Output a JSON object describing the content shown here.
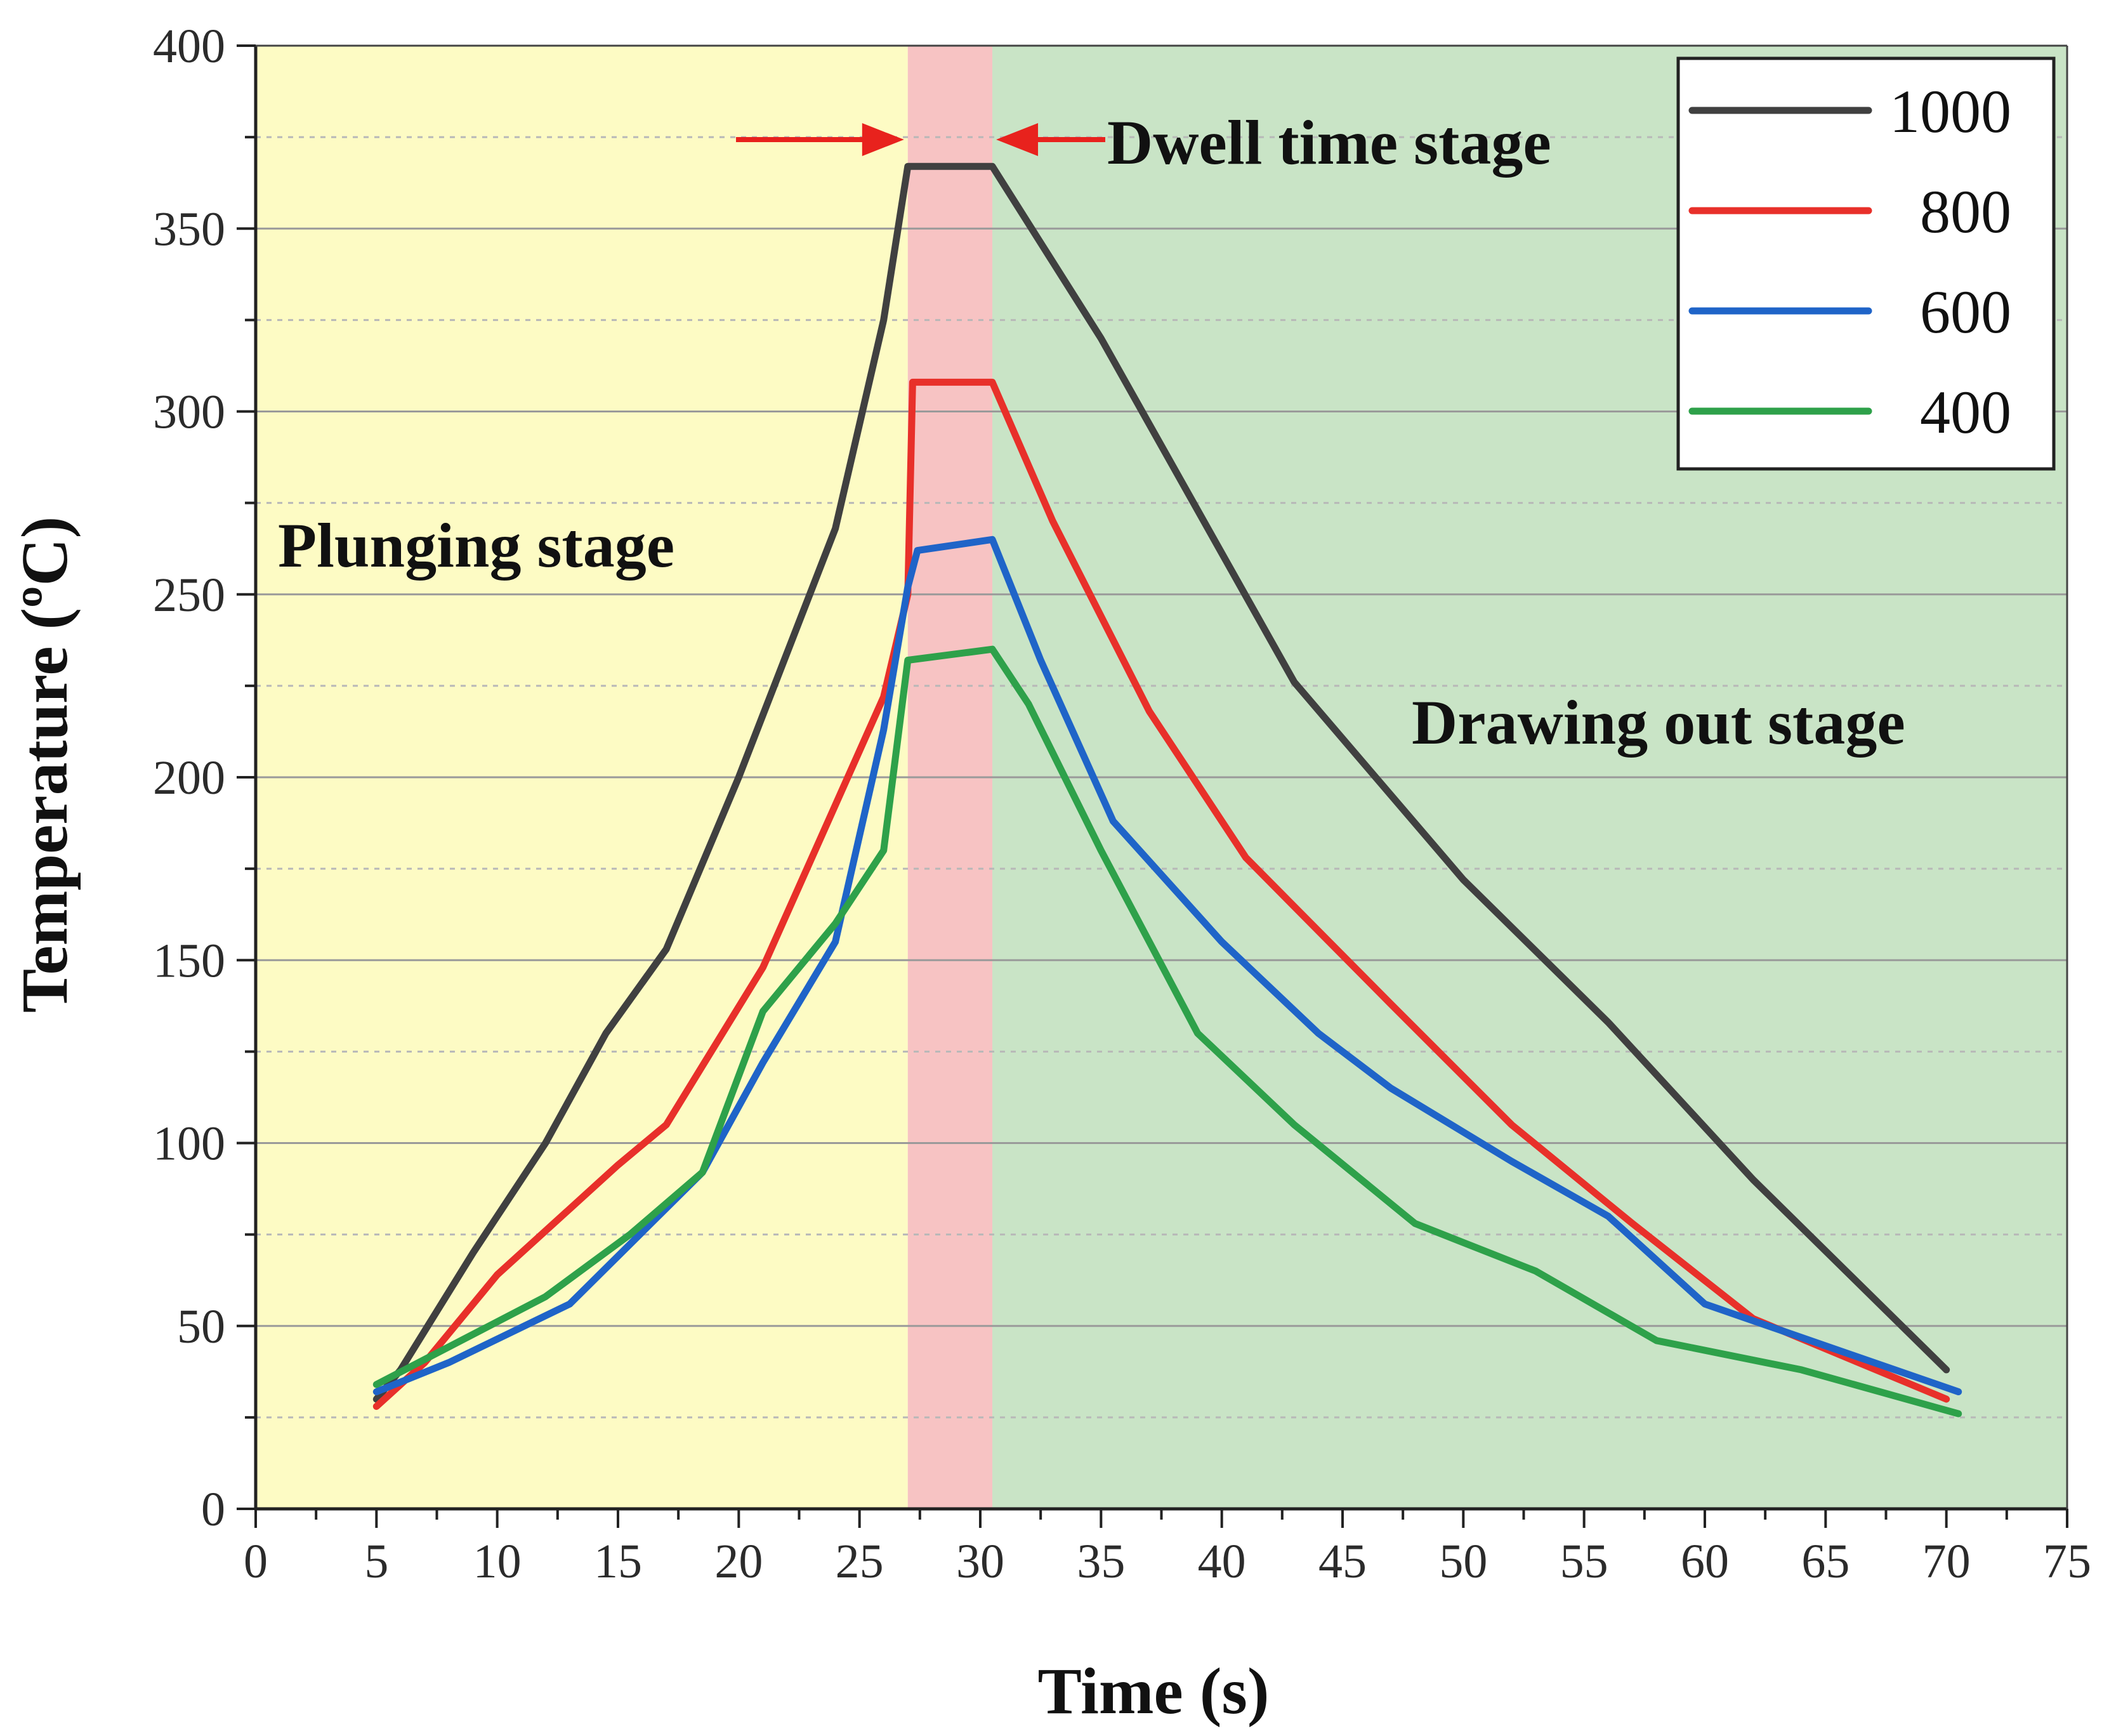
{
  "chart_data": {
    "type": "line",
    "title": "",
    "xlabel": "Time (s)",
    "ylabel": "Temperature (ºC)",
    "xlim": [
      0,
      75
    ],
    "ylim": [
      0,
      400
    ],
    "x_ticks": [
      "0",
      "5",
      "10",
      "15",
      "20",
      "25",
      "30",
      "35",
      "40",
      "45",
      "50",
      "55",
      "60",
      "65",
      "70",
      "75"
    ],
    "y_ticks": [
      "0",
      "50",
      "100",
      "150",
      "200",
      "250",
      "300",
      "350",
      "400"
    ],
    "grid": true,
    "legend_position": "top-right",
    "stages": [
      {
        "name": "Plunging stage",
        "x_start": 0,
        "x_end": 27,
        "color": "#fdfbc4"
      },
      {
        "name": "Dwell time stage",
        "x_start": 27,
        "x_end": 30.5,
        "color": "#f7c3c3"
      },
      {
        "name": "Drawing out stage",
        "x_start": 30.5,
        "x_end": 75,
        "color": "#c9e4c6"
      }
    ],
    "annotation_arrow_color": "#e8221d",
    "series": [
      {
        "name": "1000",
        "color": "#404040",
        "points": [
          [
            5,
            30
          ],
          [
            6,
            38
          ],
          [
            9,
            70
          ],
          [
            12,
            100
          ],
          [
            14.5,
            130
          ],
          [
            17,
            153
          ],
          [
            20,
            200
          ],
          [
            24,
            268
          ],
          [
            26,
            325
          ],
          [
            27,
            367
          ],
          [
            30.5,
            367
          ],
          [
            35,
            320
          ],
          [
            43,
            226
          ],
          [
            50,
            172
          ],
          [
            56,
            133
          ],
          [
            62,
            90
          ],
          [
            70,
            38
          ]
        ]
      },
      {
        "name": "800",
        "color": "#e8302a",
        "points": [
          [
            5,
            28
          ],
          [
            7,
            40
          ],
          [
            10,
            64
          ],
          [
            13,
            82
          ],
          [
            15,
            94
          ],
          [
            17,
            105
          ],
          [
            21,
            148
          ],
          [
            26,
            222
          ],
          [
            27,
            250
          ],
          [
            27.2,
            308
          ],
          [
            30.5,
            308
          ],
          [
            33,
            270
          ],
          [
            37,
            218
          ],
          [
            41,
            178
          ],
          [
            47,
            138
          ],
          [
            52,
            105
          ],
          [
            57,
            78
          ],
          [
            62,
            52
          ],
          [
            70,
            30
          ]
        ]
      },
      {
        "name": "600",
        "color": "#1f64c8",
        "points": [
          [
            5,
            32
          ],
          [
            8,
            40
          ],
          [
            13,
            56
          ],
          [
            18.5,
            92
          ],
          [
            21,
            122
          ],
          [
            24,
            155
          ],
          [
            26,
            213
          ],
          [
            27,
            252
          ],
          [
            27.4,
            262
          ],
          [
            30.5,
            265
          ],
          [
            32.5,
            232
          ],
          [
            35.5,
            188
          ],
          [
            40,
            155
          ],
          [
            44,
            130
          ],
          [
            47,
            115
          ],
          [
            52,
            95
          ],
          [
            56,
            80
          ],
          [
            60,
            56
          ],
          [
            70.5,
            32
          ]
        ]
      },
      {
        "name": "400",
        "color": "#2ea14a",
        "points": [
          [
            5,
            34
          ],
          [
            12,
            58
          ],
          [
            15.5,
            75
          ],
          [
            18.5,
            92
          ],
          [
            21,
            136
          ],
          [
            24,
            160
          ],
          [
            26,
            180
          ],
          [
            27,
            232
          ],
          [
            30.5,
            235
          ],
          [
            32,
            220
          ],
          [
            35,
            180
          ],
          [
            39,
            130
          ],
          [
            43,
            105
          ],
          [
            48,
            78
          ],
          [
            53,
            65
          ],
          [
            58,
            46
          ],
          [
            64,
            38
          ],
          [
            70.5,
            26
          ]
        ]
      }
    ]
  }
}
